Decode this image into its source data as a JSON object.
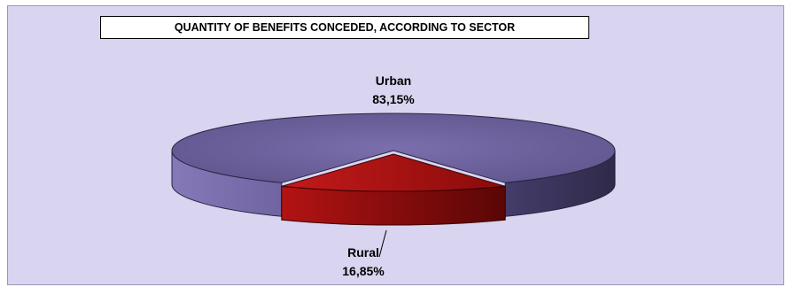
{
  "chart_data": {
    "type": "pie",
    "title": "QUANTITY OF BENEFITS CONCEDED, ACCORDING TO SECTOR",
    "slices": [
      {
        "label": "Urban",
        "value": 83.15,
        "value_label": "83,15%",
        "color": "#6f639e"
      },
      {
        "label": "Rural",
        "value": 16.85,
        "value_label": "16,85%",
        "color": "#b51414"
      }
    ],
    "style": "3d-exploded-pie"
  }
}
